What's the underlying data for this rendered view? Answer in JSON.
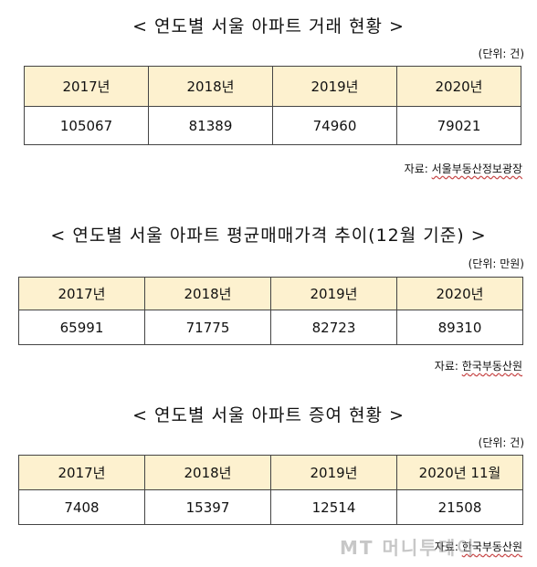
{
  "sections": [
    {
      "title": "< 연도별 서울 아파트 거래 현황 >",
      "unit": "(단위: 건)",
      "headers": [
        "2017년",
        "2018년",
        "2019년",
        "2020년"
      ],
      "values": [
        "105067",
        "81389",
        "74960",
        "79021"
      ],
      "source_label": "자료: ",
      "source_name": "서울부동산정보광장"
    },
    {
      "title": "< 연도별 서울 아파트 평균매매가격 추이(12월 기준) >",
      "unit": "(단위: 만원)",
      "headers": [
        "2017년",
        "2018년",
        "2019년",
        "2020년"
      ],
      "values": [
        "65991",
        "71775",
        "82723",
        "89310"
      ],
      "source_label": "자료: ",
      "source_name": "한국부동산원"
    },
    {
      "title": "< 연도별 서울 아파트 증여 현황 >",
      "unit": "(단위: 건)",
      "headers": [
        "2017년",
        "2018년",
        "2019년",
        "2020년 11월"
      ],
      "values": [
        "7408",
        "15397",
        "12514",
        "21508"
      ],
      "source_label": "자료: ",
      "source_name": "한국부동산원"
    }
  ],
  "watermark": "MT 머니투데이"
}
